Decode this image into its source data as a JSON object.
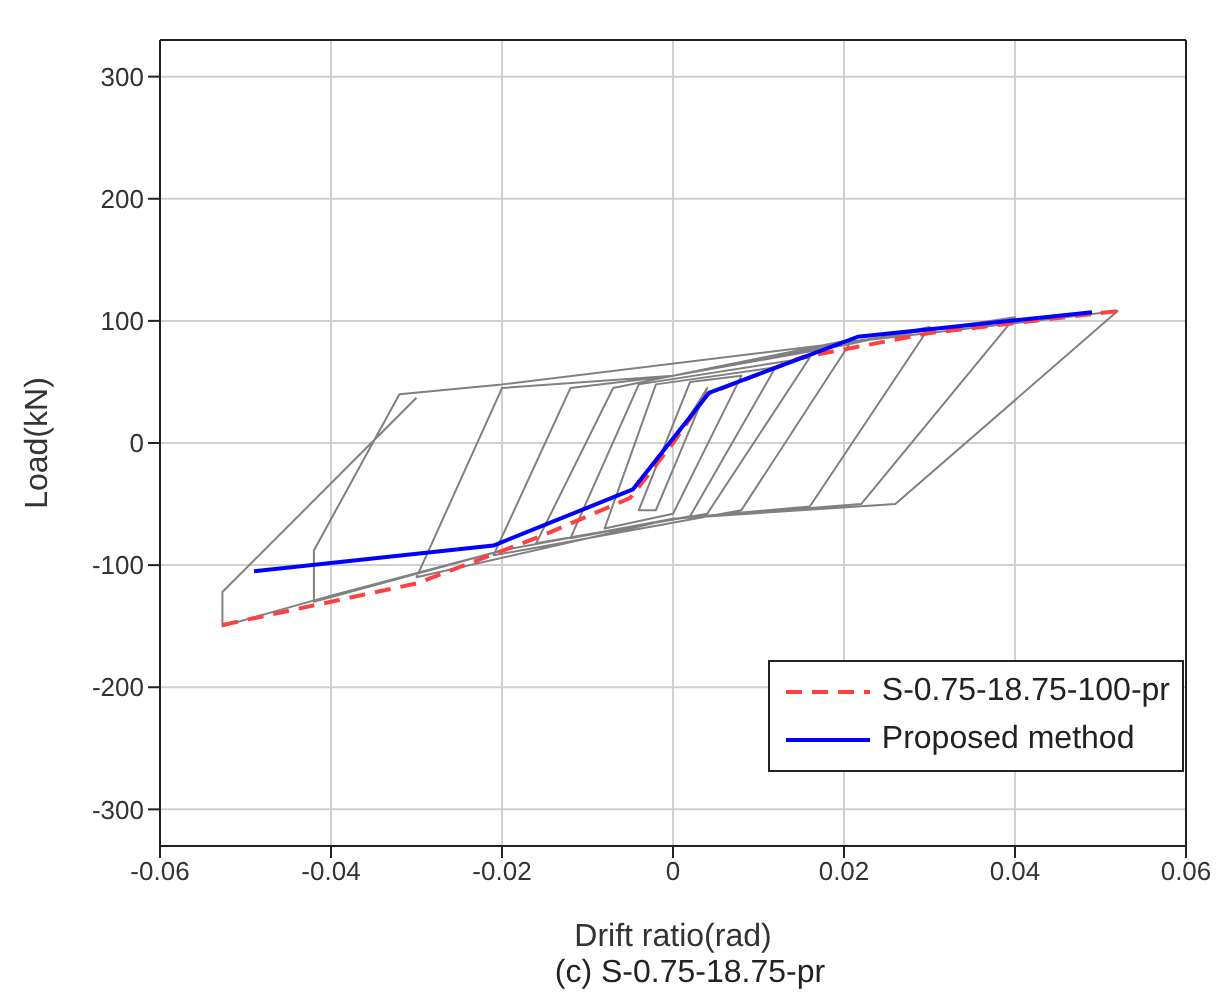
{
  "chart_data": {
    "type": "line",
    "xlabel": "Drift ratio(rad)",
    "ylabel": "Load(kN)",
    "annotations": [
      "(c) S-0.75-18.75-pr"
    ],
    "xlim": [
      -0.06,
      0.06
    ],
    "xticks": [
      -0.06,
      -0.04,
      -0.02,
      0,
      0.02,
      0.04,
      0.06
    ],
    "ylim": [
      -330,
      330
    ],
    "yticks": [
      -300,
      -200,
      -100,
      0,
      100,
      200,
      300
    ],
    "grid": true,
    "legend": "bottom right",
    "series": [
      {
        "color": "#808080",
        "line_style": "solid",
        "x": [
          0,
          0.004,
          -0.002,
          -0.004,
          0.002,
          0.008,
          0,
          -0.008,
          -0.002,
          0.012,
          0.002,
          -0.012,
          -0.004,
          0.016,
          0.004,
          -0.016,
          -0.007,
          0,
          0.021,
          0.008,
          -0.021,
          -0.012,
          0,
          0.02,
          0.03,
          0.016,
          0,
          -0.03,
          -0.02,
          0,
          0.02,
          0.04,
          0.022,
          0,
          -0.02,
          -0.042,
          -0.042,
          -0.032,
          -0.02,
          0.02,
          0.052,
          0.026,
          0,
          -0.02,
          -0.04,
          -0.0527,
          -0.0527,
          -0.03
        ],
        "values": [
          0,
          45,
          -55,
          -55,
          50,
          55,
          -58,
          -70,
          48,
          62,
          -60,
          -78,
          48,
          70,
          -58,
          -82,
          45,
          55,
          85,
          -55,
          -92,
          45,
          55,
          80,
          95,
          -52,
          -62,
          -110,
          45,
          55,
          82,
          103,
          -50,
          -62,
          -88,
          -130,
          -88,
          40,
          48,
          82,
          108,
          -50,
          -62,
          -88,
          -125,
          -150,
          -122,
          37
        ]
      },
      {
        "name": "S-0.75-18.75-100-pr",
        "color": "#ff4040",
        "line_style": "dashed",
        "x": [
          -0.0527,
          -0.03,
          -0.015,
          -0.005,
          0,
          0.004,
          0.015,
          0.03,
          0.052
        ],
        "values": [
          -149,
          -115,
          -75,
          -45,
          0,
          40,
          70,
          90,
          108
        ]
      },
      {
        "name": "Proposed method",
        "color": "#0000ff",
        "line_style": "solid",
        "x": [
          -0.049,
          -0.021,
          -0.0047,
          0.0042,
          0.0216,
          0.049
        ],
        "values": [
          -105,
          -84,
          -38,
          41,
          87,
          107
        ]
      }
    ]
  }
}
